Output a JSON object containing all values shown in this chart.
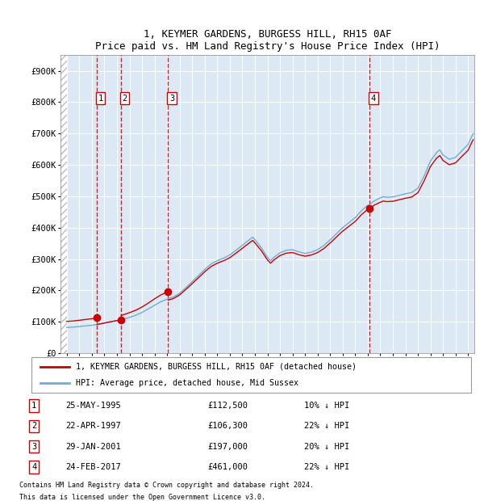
{
  "title1": "1, KEYMER GARDENS, BURGESS HILL, RH15 0AF",
  "title2": "Price paid vs. HM Land Registry's House Price Index (HPI)",
  "ylim": [
    0,
    950000
  ],
  "yticks": [
    0,
    100000,
    200000,
    300000,
    400000,
    500000,
    600000,
    700000,
    800000,
    900000
  ],
  "ytick_labels": [
    "£0",
    "£100K",
    "£200K",
    "£300K",
    "£400K",
    "£500K",
    "£600K",
    "£700K",
    "£800K",
    "£900K"
  ],
  "xlim_start": 1993.0,
  "xlim_end": 2025.5,
  "hpi_color": "#6baed6",
  "sale_color": "#cc0000",
  "plot_bg": "#dce9f5",
  "grid_color": "#ffffff",
  "hatch_color": "#bbbbbb",
  "sales": [
    {
      "num": 1,
      "year": 1995.38,
      "price": 112500,
      "date": "25-MAY-1995",
      "pct": "10%"
    },
    {
      "num": 2,
      "year": 1997.3,
      "price": 106300,
      "date": "22-APR-1997",
      "pct": "22%"
    },
    {
      "num": 3,
      "year": 2001.08,
      "price": 197000,
      "date": "29-JAN-2001",
      "pct": "20%"
    },
    {
      "num": 4,
      "year": 2017.15,
      "price": 461000,
      "date": "24-FEB-2017",
      "pct": "22%"
    }
  ],
  "legend1": "1, KEYMER GARDENS, BURGESS HILL, RH15 0AF (detached house)",
  "legend2": "HPI: Average price, detached house, Mid Sussex",
  "footnote1": "Contains HM Land Registry data © Crown copyright and database right 2024.",
  "footnote2": "This data is licensed under the Open Government Licence v3.0."
}
